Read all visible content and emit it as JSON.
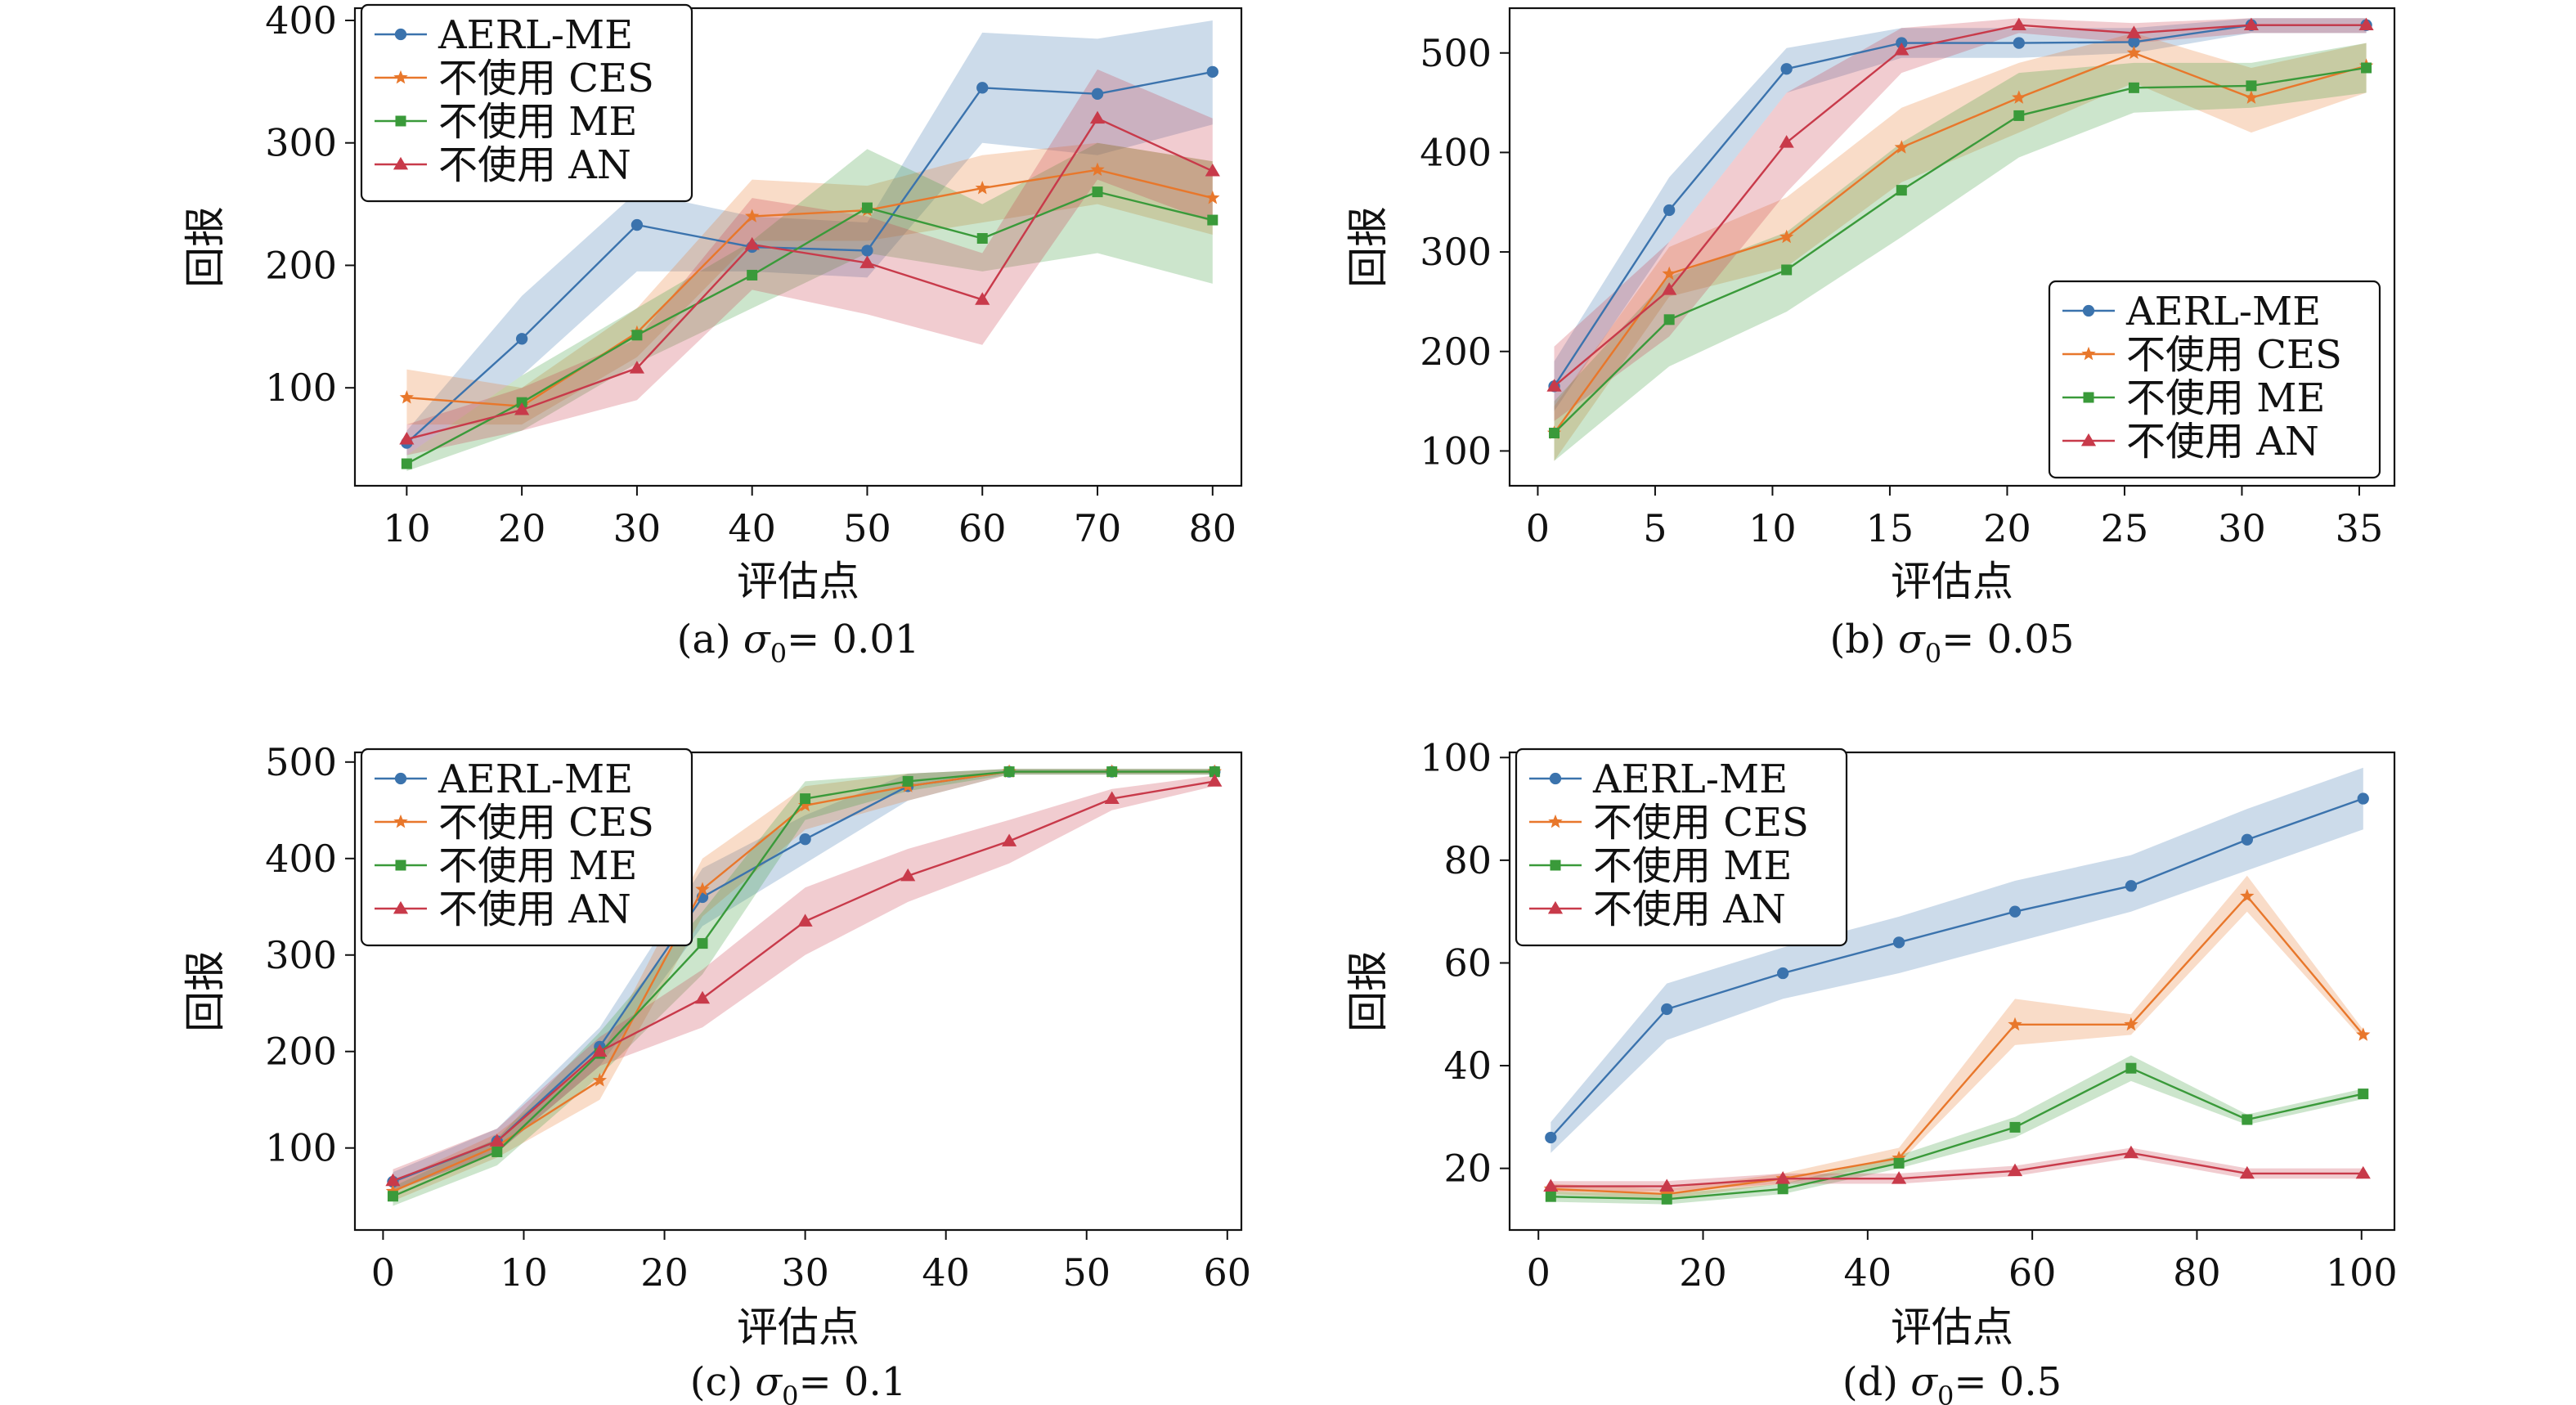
{
  "figure": {
    "background": "#ffffff",
    "colors": {
      "AERL-ME": "#3b73ad",
      "不使用 CES": "#e8772b",
      "不使用 ME": "#3a9a3a",
      "不使用 AN": "#c83a4a"
    },
    "markers": {
      "AERL-ME": "circle",
      "不使用 CES": "star",
      "不使用 ME": "square",
      "不使用 AN": "triangle"
    }
  },
  "chart_data": [
    {
      "type": "line",
      "caption_prefix": "(a) ",
      "caption_symbol": "σ",
      "caption_sub": "0",
      "caption_value": "= 0.01",
      "xlabel": "评估点",
      "ylabel": "回报",
      "xlim": [
        5.5,
        82.5
      ],
      "ylim": [
        20,
        410
      ],
      "xticks": [
        "10",
        "20",
        "30",
        "40",
        "50",
        "60",
        "70",
        "80"
      ],
      "yticks": [
        "100",
        "200",
        "300",
        "400"
      ],
      "legend_position": "top-left",
      "grid": false,
      "series": [
        {
          "name": "AERL-ME",
          "x": [
            10,
            20,
            30,
            40,
            50,
            60,
            70,
            80
          ],
          "y": [
            55,
            140,
            233,
            215,
            212,
            345,
            340,
            358
          ],
          "lower": [
            45,
            110,
            195,
            195,
            190,
            300,
            290,
            315
          ],
          "upper": [
            65,
            175,
            260,
            240,
            235,
            390,
            385,
            400
          ]
        },
        {
          "name": "不使用 CES",
          "x": [
            10,
            20,
            30,
            40,
            50,
            60,
            70,
            80
          ],
          "y": [
            92,
            85,
            145,
            240,
            245,
            263,
            278,
            255
          ],
          "lower": [
            70,
            70,
            125,
            220,
            220,
            235,
            250,
            225
          ],
          "upper": [
            115,
            100,
            165,
            270,
            265,
            290,
            300,
            285
          ]
        },
        {
          "name": "不使用 ME",
          "x": [
            10,
            20,
            30,
            40,
            50,
            60,
            70,
            80
          ],
          "y": [
            38,
            88,
            143,
            192,
            247,
            222,
            260,
            237
          ],
          "lower": [
            32,
            65,
            120,
            165,
            210,
            195,
            210,
            185
          ],
          "upper": [
            45,
            110,
            165,
            220,
            295,
            250,
            300,
            285
          ]
        },
        {
          "name": "不使用 AN",
          "x": [
            10,
            20,
            30,
            40,
            50,
            60,
            70,
            80
          ],
          "y": [
            58,
            82,
            116,
            217,
            202,
            172,
            320,
            277
          ],
          "lower": [
            45,
            65,
            90,
            180,
            160,
            135,
            270,
            235
          ],
          "upper": [
            70,
            100,
            140,
            255,
            240,
            210,
            360,
            320
          ]
        }
      ]
    },
    {
      "type": "line",
      "caption_prefix": "(b) ",
      "caption_symbol": "σ",
      "caption_sub": "0",
      "caption_value": "= 0.05",
      "xlabel": "评估点",
      "ylabel": "回报",
      "xlim": [
        -1.2,
        36.5
      ],
      "ylim": [
        65,
        545
      ],
      "xticks": [
        "0",
        "5",
        "10",
        "15",
        "20",
        "25",
        "30",
        "35"
      ],
      "yticks": [
        "100",
        "200",
        "300",
        "400",
        "500"
      ],
      "legend_position": "bottom-right",
      "grid": false,
      "series": [
        {
          "name": "AERL-ME",
          "x": [
            0.7,
            5.6,
            10.6,
            15.5,
            20.5,
            25.4,
            30.4,
            35.3
          ],
          "y": [
            165,
            342,
            484,
            510,
            510,
            511,
            528,
            528
          ],
          "lower": [
            140,
            310,
            460,
            495,
            495,
            500,
            520,
            520
          ],
          "upper": [
            190,
            375,
            505,
            525,
            525,
            525,
            535,
            535
          ]
        },
        {
          "name": "不使用 CES",
          "x": [
            0.7,
            5.6,
            10.6,
            15.5,
            20.5,
            25.4,
            30.4,
            35.3
          ],
          "y": [
            118,
            278,
            315,
            405,
            455,
            500,
            455,
            487
          ],
          "lower": [
            90,
            255,
            285,
            370,
            420,
            470,
            420,
            460
          ],
          "upper": [
            145,
            305,
            355,
            445,
            490,
            520,
            485,
            510
          ]
        },
        {
          "name": "不使用 ME",
          "x": [
            0.7,
            5.6,
            10.6,
            15.5,
            20.5,
            25.4,
            30.4,
            35.3
          ],
          "y": [
            118,
            232,
            282,
            362,
            437,
            465,
            467,
            485
          ],
          "lower": [
            90,
            185,
            240,
            315,
            395,
            440,
            445,
            460
          ],
          "upper": [
            150,
            275,
            320,
            410,
            480,
            490,
            490,
            510
          ]
        },
        {
          "name": "不使用 AN",
          "x": [
            0.7,
            5.6,
            10.6,
            15.5,
            20.5,
            25.4,
            30.4,
            35.3
          ],
          "y": [
            165,
            262,
            410,
            503,
            528,
            520,
            528,
            528
          ],
          "lower": [
            130,
            215,
            360,
            480,
            520,
            510,
            520,
            520
          ],
          "upper": [
            205,
            310,
            460,
            525,
            535,
            530,
            535,
            535
          ]
        }
      ]
    },
    {
      "type": "line",
      "caption_prefix": "(c) ",
      "caption_symbol": "σ",
      "caption_sub": "0",
      "caption_value": "= 0.1",
      "xlabel": "评估点",
      "ylabel": "回报",
      "xlim": [
        -2,
        61
      ],
      "ylim": [
        15,
        510
      ],
      "xticks": [
        "0",
        "10",
        "20",
        "30",
        "40",
        "50",
        "60"
      ],
      "yticks": [
        "100",
        "200",
        "300",
        "400",
        "500"
      ],
      "legend_position": "top-left",
      "grid": false,
      "series": [
        {
          "name": "AERL-ME",
          "x": [
            0.7,
            8.1,
            15.4,
            22.7,
            30.0,
            37.3,
            44.5,
            51.8,
            59.1
          ],
          "y": [
            65,
            107,
            205,
            360,
            420,
            475,
            490,
            490,
            490
          ],
          "lower": [
            55,
            95,
            185,
            330,
            395,
            460,
            487,
            487,
            487
          ],
          "upper": [
            75,
            120,
            225,
            390,
            445,
            488,
            493,
            493,
            493
          ]
        },
        {
          "name": "不使用 CES",
          "x": [
            0.7,
            8.1,
            15.4,
            22.7,
            30.0,
            37.3,
            44.5,
            51.8,
            59.1
          ],
          "y": [
            55,
            102,
            170,
            368,
            455,
            475,
            490,
            490,
            490
          ],
          "lower": [
            45,
            90,
            150,
            340,
            430,
            460,
            487,
            487,
            487
          ],
          "upper": [
            65,
            115,
            195,
            400,
            475,
            488,
            493,
            493,
            493
          ]
        },
        {
          "name": "不使用 ME",
          "x": [
            0.7,
            8.1,
            15.4,
            22.7,
            30.0,
            37.3,
            44.5,
            51.8,
            59.1
          ],
          "y": [
            50,
            96,
            198,
            312,
            462,
            480,
            490,
            490,
            490
          ],
          "lower": [
            40,
            82,
            175,
            280,
            440,
            470,
            487,
            487,
            487
          ],
          "upper": [
            60,
            110,
            220,
            345,
            480,
            488,
            493,
            493,
            493
          ]
        },
        {
          "name": "不使用 AN",
          "x": [
            0.7,
            8.1,
            15.4,
            22.7,
            30.0,
            37.3,
            44.5,
            51.8,
            59.1
          ],
          "y": [
            66,
            107,
            200,
            255,
            335,
            382,
            418,
            462,
            480
          ],
          "lower": [
            55,
            95,
            185,
            225,
            300,
            355,
            395,
            450,
            475
          ],
          "upper": [
            78,
            120,
            215,
            285,
            370,
            410,
            440,
            472,
            486
          ]
        }
      ]
    },
    {
      "type": "line",
      "caption_prefix": "(d) ",
      "caption_symbol": "σ",
      "caption_sub": "0",
      "caption_value": "= 0.5",
      "xlabel": "评估点",
      "ylabel": "回报",
      "xlim": [
        -3.5,
        104
      ],
      "ylim": [
        8,
        101
      ],
      "xticks": [
        "0",
        "20",
        "40",
        "60",
        "80",
        "100"
      ],
      "yticks": [
        "20",
        "40",
        "60",
        "80",
        "100"
      ],
      "legend_position": "top-left",
      "grid": false,
      "series": [
        {
          "name": "AERL-ME",
          "x": [
            1.5,
            15.6,
            29.7,
            43.8,
            57.9,
            72.0,
            86.1,
            100.2
          ],
          "y": [
            26,
            51,
            58,
            64,
            70,
            75,
            84,
            92
          ],
          "lower": [
            23,
            45,
            53,
            58,
            64,
            70,
            78,
            86
          ],
          "upper": [
            29,
            56,
            63,
            69,
            76,
            81,
            90,
            98
          ]
        },
        {
          "name": "不使用 CES",
          "x": [
            1.5,
            15.6,
            29.7,
            43.8,
            57.9,
            72.0,
            86.1,
            100.2
          ],
          "y": [
            16,
            15,
            18,
            22,
            48,
            48,
            73,
            46
          ],
          "lower": [
            15,
            14,
            17,
            21,
            44,
            46,
            70,
            45
          ],
          "upper": [
            17,
            16,
            19,
            24,
            53,
            50,
            77,
            47
          ]
        },
        {
          "name": "不使用 ME",
          "x": [
            1.5,
            15.6,
            29.7,
            43.8,
            57.9,
            72.0,
            86.1,
            100.2
          ],
          "y": [
            14.5,
            14,
            16,
            21,
            28,
            39.5,
            29.5,
            34.5
          ],
          "lower": [
            13.5,
            13,
            15,
            20,
            26,
            37,
            28.5,
            33.5
          ],
          "upper": [
            15.5,
            15,
            17,
            22.5,
            30,
            42,
            30.5,
            35.5
          ]
        },
        {
          "name": "不使用 AN",
          "x": [
            1.5,
            15.6,
            29.7,
            43.8,
            57.9,
            72.0,
            86.1,
            100.2
          ],
          "y": [
            16.5,
            16.5,
            18,
            18,
            19.5,
            23,
            19,
            19
          ],
          "lower": [
            15.5,
            15.5,
            17,
            17,
            18.5,
            22,
            18,
            18
          ],
          "upper": [
            17.5,
            17.5,
            19,
            19,
            20.5,
            24,
            20,
            20
          ]
        }
      ]
    }
  ]
}
